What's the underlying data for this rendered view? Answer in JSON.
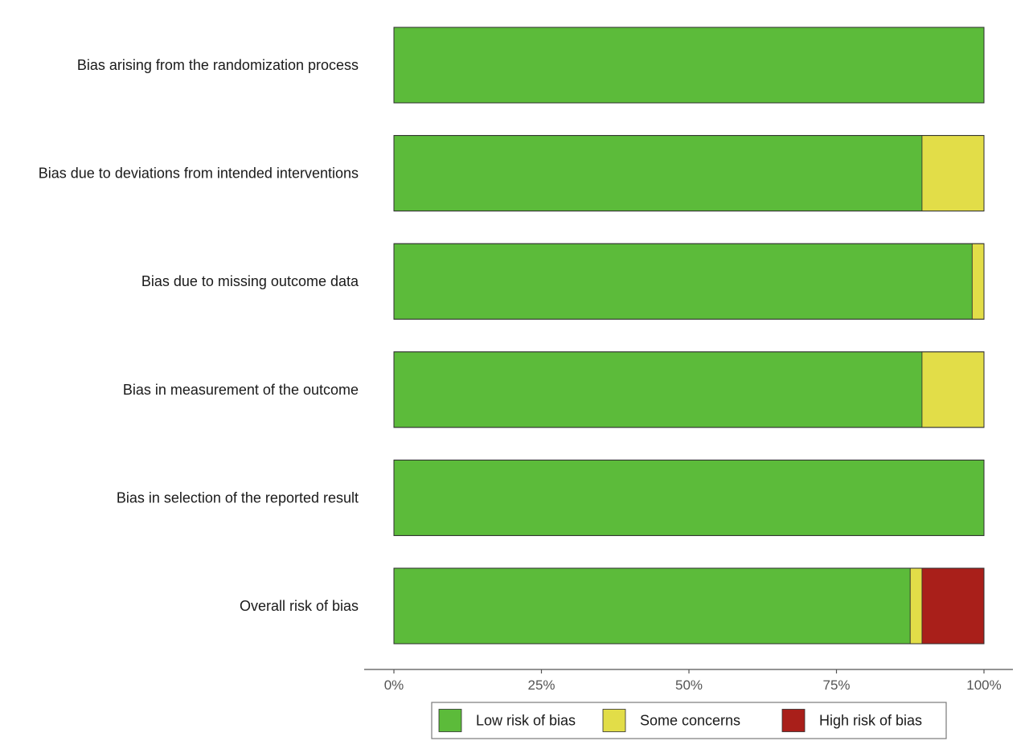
{
  "chart_data": {
    "type": "bar",
    "orientation": "horizontal",
    "stacked": true,
    "categories": [
      "Bias arising from the randomization process",
      "Bias due to deviations from intended interventions",
      "Bias due to missing outcome data",
      "Bias in measurement of the outcome",
      "Bias in selection of the reported result",
      "Overall risk of bias"
    ],
    "series": [
      {
        "name": "Low risk of bias",
        "color": "#5cbb3a",
        "values": [
          100,
          89.5,
          98,
          89.5,
          100,
          87.5
        ]
      },
      {
        "name": "Some concerns",
        "color": "#e2dd48",
        "values": [
          0,
          10.5,
          2,
          10.5,
          0,
          2
        ]
      },
      {
        "name": "High risk of bias",
        "color": "#a91f1a",
        "values": [
          0,
          0,
          0,
          0,
          0,
          10.5
        ]
      }
    ],
    "x_ticks": [
      "0%",
      "25%",
      "50%",
      "75%",
      "100%"
    ],
    "x_tick_values": [
      0,
      25,
      50,
      75,
      100
    ],
    "xlim": [
      0,
      100
    ],
    "title": "",
    "xlabel": "",
    "ylabel": "",
    "grid": false,
    "legend_position": "bottom"
  }
}
